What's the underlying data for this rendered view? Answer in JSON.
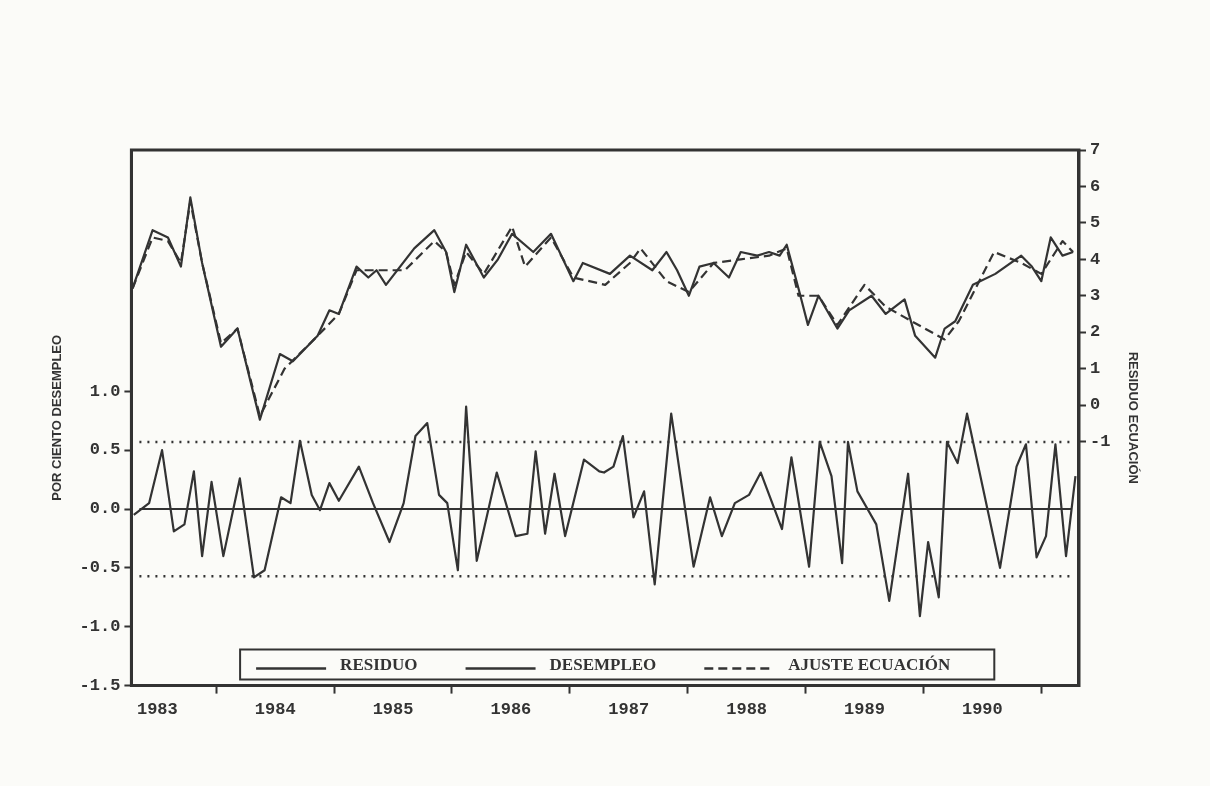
{
  "chart_data": {
    "type": "line",
    "ylabel": "POR CIENTO DESEMPLEO",
    "y2label": "RESIDUO ECUACIÓN",
    "xlim": [
      1983.28,
      1991.32
    ],
    "xticks": [
      {
        "value": 1983.5,
        "label": "1983"
      },
      {
        "value": 1984,
        "label": null
      },
      {
        "value": 1984.5,
        "label": "1984"
      },
      {
        "value": 1985,
        "label": null
      },
      {
        "value": 1985.5,
        "label": "1985"
      },
      {
        "value": 1986,
        "label": null
      },
      {
        "value": 1986.5,
        "label": "1986"
      },
      {
        "value": 1987,
        "label": null
      },
      {
        "value": 1987.5,
        "label": "1987"
      },
      {
        "value": 1988,
        "label": null
      },
      {
        "value": 1988.5,
        "label": "1988"
      },
      {
        "value": 1989,
        "label": null
      },
      {
        "value": 1989.5,
        "label": "1989"
      },
      {
        "value": 1990,
        "label": null
      },
      {
        "value": 1990.5,
        "label": "1990"
      },
      {
        "value": 1991,
        "label": null
      }
    ],
    "ylim": [
      -1.5,
      3.05
    ],
    "yticks": [
      {
        "value": -1.5,
        "label": "-1.5"
      },
      {
        "value": -1,
        "label": "-1.0"
      },
      {
        "value": -0.5,
        "label": "-0.5"
      },
      {
        "value": 0,
        "label": "0.0"
      },
      {
        "value": 0.5,
        "label": "0.5"
      },
      {
        "value": 1,
        "label": "1.0"
      }
    ],
    "y2lim": [
      -7.7,
      7
    ],
    "y2ticks": [
      -1,
      0,
      1,
      2,
      3,
      4,
      5,
      6,
      7
    ],
    "legend": "bottom",
    "line_style": "solid",
    "ref_lines": [
      {
        "axis": "y",
        "value": 0,
        "color": "#333333",
        "line_style": "solid"
      },
      {
        "axis": "y",
        "value": 0.57,
        "color": "#333333",
        "line_style": "dotted"
      },
      {
        "axis": "y",
        "value": -0.57,
        "color": "#333333",
        "line_style": "dotted"
      }
    ],
    "series": [
      {
        "name": "RESIDUO",
        "color": "#333333",
        "x": [
          1983.3,
          1983.43,
          1983.54,
          1983.64,
          1983.73,
          1983.81,
          1983.88,
          1983.96,
          1984.06,
          1984.2,
          1984.32,
          1984.41,
          1984.55,
          1984.63,
          1984.71,
          1984.81,
          1984.88,
          1984.96,
          1985.04,
          1985.21,
          1985.33,
          1985.47,
          1985.59,
          1985.69,
          1985.79,
          1985.89,
          1985.96,
          1986.05,
          1986.12,
          1986.21,
          1986.38,
          1986.54,
          1986.64,
          1986.71,
          1986.79,
          1986.87,
          1986.96,
          1987.12,
          1987.25,
          1987.29,
          1987.37,
          1987.45,
          1987.54,
          1987.63,
          1987.72,
          1987.86,
          1988.05,
          1988.19,
          1988.29,
          1988.4,
          1988.52,
          1988.62,
          1988.8,
          1988.88,
          1989.03,
          1989.12,
          1989.22,
          1989.31,
          1989.36,
          1989.44,
          1989.6,
          1989.71,
          1989.87,
          1989.97,
          1990.04,
          1990.13,
          1990.2,
          1990.29,
          1990.37,
          1990.65,
          1990.79,
          1990.87,
          1990.96,
          1991.04,
          1991.12,
          1991.21,
          1991.29
        ],
        "values": [
          -0.05,
          0.05,
          0.5,
          -0.19,
          -0.13,
          0.32,
          -0.4,
          0.23,
          -0.4,
          0.26,
          -0.58,
          -0.52,
          0.1,
          0.05,
          0.58,
          0.12,
          -0.01,
          0.22,
          0.07,
          0.36,
          0.05,
          -0.28,
          0.05,
          0.62,
          0.73,
          0.12,
          0.05,
          -0.52,
          0.87,
          -0.44,
          0.31,
          -0.23,
          -0.21,
          0.49,
          -0.21,
          0.3,
          -0.23,
          0.42,
          0.32,
          0.31,
          0.36,
          0.62,
          -0.07,
          0.15,
          -0.64,
          0.81,
          -0.49,
          0.1,
          -0.23,
          0.05,
          0.12,
          0.31,
          -0.17,
          0.44,
          -0.49,
          0.57,
          0.28,
          -0.46,
          0.57,
          0.15,
          -0.13,
          -0.78,
          0.3,
          -0.91,
          -0.28,
          -0.75,
          0.57,
          0.39,
          0.81,
          -0.5,
          0.36,
          0.55,
          -0.41,
          -0.23,
          0.55,
          -0.4,
          0.28
        ]
      },
      {
        "name": "DESEMPLEO",
        "color": "#333333",
        "axis": "y2",
        "x": [
          1983.29,
          1983.46,
          1983.59,
          1983.7,
          1983.78,
          1983.88,
          1984.04,
          1984.18,
          1984.37,
          1984.54,
          1984.65,
          1984.86,
          1984.96,
          1985.04,
          1985.19,
          1985.29,
          1985.36,
          1985.44,
          1985.68,
          1985.85,
          1985.95,
          1986.02,
          1986.12,
          1986.27,
          1986.39,
          1986.51,
          1986.69,
          1986.84,
          1987.03,
          1987.11,
          1987.34,
          1987.51,
          1987.7,
          1987.82,
          1987.91,
          1988.01,
          1988.1,
          1988.22,
          1988.35,
          1988.45,
          1988.59,
          1988.69,
          1988.78,
          1988.84,
          1988.94,
          1989.02,
          1989.11,
          1989.27,
          1989.37,
          1989.56,
          1989.68,
          1989.84,
          1989.93,
          1990.1,
          1990.18,
          1990.27,
          1990.42,
          1990.61,
          1990.83,
          1990.92,
          1991.0,
          1991.08,
          1991.18,
          1991.27
        ],
        "values": [
          3.2,
          4.8,
          4.6,
          3.8,
          5.7,
          3.9,
          1.6,
          2.1,
          -0.4,
          1.4,
          1.2,
          1.9,
          2.6,
          2.5,
          3.8,
          3.5,
          3.7,
          3.3,
          4.3,
          4.8,
          4.2,
          3.1,
          4.4,
          3.5,
          4.0,
          4.7,
          4.2,
          4.7,
          3.4,
          3.9,
          3.6,
          4.1,
          3.7,
          4.2,
          3.7,
          3.0,
          3.8,
          3.9,
          3.5,
          4.2,
          4.1,
          4.2,
          4.1,
          4.4,
          3.2,
          2.2,
          3.0,
          2.1,
          2.6,
          3.0,
          2.5,
          2.9,
          1.9,
          1.3,
          2.1,
          2.3,
          3.3,
          3.6,
          4.1,
          3.8,
          3.4,
          4.6,
          4.1,
          4.2
        ]
      },
      {
        "name": "AJUSTE ECUACIÓN",
        "color": "#333333",
        "axis": "y2",
        "line_style": "dashed",
        "x": [
          1983.29,
          1983.46,
          1983.59,
          1983.7,
          1983.78,
          1983.88,
          1984.04,
          1984.18,
          1984.37,
          1984.58,
          1984.86,
          1985.04,
          1985.19,
          1985.36,
          1985.6,
          1985.85,
          1985.95,
          1986.02,
          1986.12,
          1986.27,
          1986.51,
          1986.62,
          1986.84,
          1987.03,
          1987.3,
          1987.51,
          1987.6,
          1987.82,
          1988.01,
          1988.22,
          1988.45,
          1988.69,
          1988.84,
          1988.94,
          1989.11,
          1989.27,
          1989.5,
          1989.68,
          1989.9,
          1990.18,
          1990.3,
          1990.6,
          1990.83,
          1991.0,
          1991.18,
          1991.27
        ],
        "values": [
          3.2,
          4.6,
          4.5,
          3.9,
          5.6,
          3.9,
          1.7,
          2.1,
          -0.3,
          1.0,
          1.9,
          2.5,
          3.7,
          3.7,
          3.7,
          4.5,
          4.2,
          3.3,
          4.2,
          3.6,
          4.9,
          3.8,
          4.6,
          3.5,
          3.3,
          3.9,
          4.3,
          3.4,
          3.1,
          3.9,
          4.0,
          4.1,
          4.3,
          3.0,
          3.0,
          2.2,
          3.3,
          2.7,
          2.3,
          1.8,
          2.3,
          4.2,
          3.9,
          3.6,
          4.5,
          4.2
        ]
      }
    ]
  }
}
